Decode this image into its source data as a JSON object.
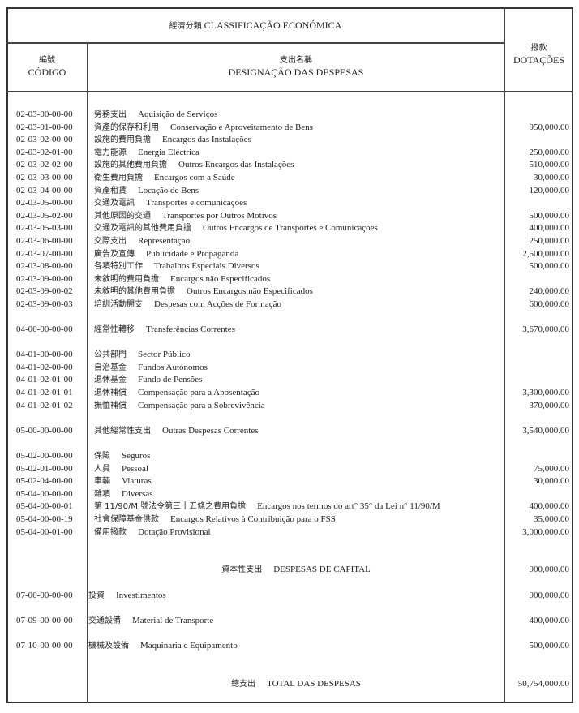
{
  "header": {
    "classification_zh": "經濟分類",
    "classification_pt": "CLASSIFICAÇÃO ECONÓMICA",
    "code_zh": "編號",
    "code_pt": "CÓDIGO",
    "designation_zh": "支出名稱",
    "designation_pt": "DESIGNAÇÃO DAS DESPESAS",
    "dotacoes_zh": "撥款",
    "dotacoes_pt": "DOTAÇÕES"
  },
  "sections": [
    {
      "rows": [
        {
          "code": "02-03-00-00-00",
          "zh": "勞務支出",
          "pt": "Aquisição de Serviços",
          "amount": ""
        },
        {
          "code": "02-03-01-00-00",
          "zh": "資產的保存和利用",
          "pt": "Conservação e Aproveitamento de Bens",
          "amount": "950,000.00"
        },
        {
          "code": "02-03-02-00-00",
          "zh": "設施的費用負擔",
          "pt": "Encargos das Instalações",
          "amount": ""
        },
        {
          "code": "02-03-02-01-00",
          "zh": "電力能源",
          "pt": "Energia Eléctrica",
          "amount": "250,000.00"
        },
        {
          "code": "02-03-02-02-00",
          "zh": "設施的其他費用負擔",
          "pt": "Outros Encargos das Instalações",
          "amount": "510,000.00"
        },
        {
          "code": "02-03-03-00-00",
          "zh": "衛生費用負擔",
          "pt": "Encargos com a Saúde",
          "amount": "30,000.00"
        },
        {
          "code": "02-03-04-00-00",
          "zh": "資產租賃",
          "pt": "Locação de Bens",
          "amount": "120,000.00"
        },
        {
          "code": "02-03-05-00-00",
          "zh": "交通及電訊",
          "pt": "Transportes e comunicações",
          "amount": ""
        },
        {
          "code": "02-03-05-02-00",
          "zh": "其他原因的交通",
          "pt": "Transportes por Outros Motivos",
          "amount": "500,000.00"
        },
        {
          "code": "02-03-05-03-00",
          "zh": "交通及電訊的其他費用負擔",
          "pt": "Outros Encargos de Transportes e Comunicações",
          "amount": "400,000.00"
        },
        {
          "code": "02-03-06-00-00",
          "zh": "交際支出",
          "pt": "Representação",
          "amount": "250,000.00"
        },
        {
          "code": "02-03-07-00-00",
          "zh": "廣告及宣傳",
          "pt": "Publicidade e Propaganda",
          "amount": "2,500,000.00"
        },
        {
          "code": "02-03-08-00-00",
          "zh": "各項特別工作",
          "pt": "Trabalhos Especiais Diversos",
          "amount": "500,000.00"
        },
        {
          "code": "02-03-09-00-00",
          "zh": "未敘明的費用負擔",
          "pt": "Encargos não Especificados",
          "amount": ""
        },
        {
          "code": "02-03-09-00-02",
          "zh": "未敘明的其他費用負擔",
          "pt": "Outros Encargos não Especificados",
          "amount": "240,000.00"
        },
        {
          "code": "02-03-09-00-03",
          "zh": "培訓活動開支",
          "pt": "Despesas com Acções de Formação",
          "amount": "600,000.00"
        }
      ]
    },
    {
      "rows": [
        {
          "code": "04-00-00-00-00",
          "zh": "經常性轉移",
          "pt": "Transferências Correntes",
          "amount": "3,670,000.00"
        }
      ]
    },
    {
      "rows": [
        {
          "code": "04-01-00-00-00",
          "zh": "公共部門",
          "pt": "Sector Público",
          "amount": ""
        },
        {
          "code": "04-01-02-00-00",
          "zh": "自治基金",
          "pt": "Fundos Autónomos",
          "amount": ""
        },
        {
          "code": "04-01-02-01-00",
          "zh": "退休基金",
          "pt": "Fundo de Pensões",
          "amount": ""
        },
        {
          "code": "04-01-02-01-01",
          "zh": "退休補償",
          "pt": "Compensação para a Aposentação",
          "amount": "3,300,000.00"
        },
        {
          "code": "04-01-02-01-02",
          "zh": "撫恤補償",
          "pt": "Compensação para a Sobrevivência",
          "amount": "370,000.00"
        }
      ]
    },
    {
      "rows": [
        {
          "code": "05-00-00-00-00",
          "zh": "其他經常性支出",
          "pt": "Outras Despesas Correntes",
          "amount": "3,540,000.00"
        }
      ]
    },
    {
      "rows": [
        {
          "code": "05-02-00-00-00",
          "zh": "保險",
          "pt": "Seguros",
          "amount": ""
        },
        {
          "code": "05-02-01-00-00",
          "zh": "人員",
          "pt": "Pessoal",
          "amount": "75,000.00"
        },
        {
          "code": "05-02-04-00-00",
          "zh": "車輛",
          "pt": "Viaturas",
          "amount": "30,000.00"
        },
        {
          "code": "05-04-00-00-00",
          "zh": "雜項",
          "pt": "Diversas",
          "amount": ""
        },
        {
          "code": "05-04-00-00-01",
          "zh": "第 11/90/M 號法令第三十五條之費用負擔",
          "pt": "Encargos nos termos do art° 35° da Lei n° 11/90/M",
          "amount": "400,000.00"
        },
        {
          "code": "05-04-00-00-19",
          "zh": "社會保障基金供款",
          "pt": "Encargos Relativos à Contribuição para o FSS",
          "amount": "35,000.00"
        },
        {
          "code": "05-04-00-01-00",
          "zh": "備用撥款",
          "pt": "Dotação Provisional",
          "amount": "3,000,000.00"
        }
      ]
    },
    {
      "heading": true,
      "rows": [
        {
          "code": "",
          "zh": "資本性支出",
          "pt": "DESPESAS DE CAPITAL",
          "amount": "900,000.00"
        }
      ]
    },
    {
      "tight": true,
      "rows": [
        {
          "code": "07-00-00-00-00",
          "zh": "投資",
          "pt": "Investimentos",
          "amount": "900,000.00"
        }
      ]
    },
    {
      "tight": true,
      "rows": [
        {
          "code": "07-09-00-00-00",
          "zh": "交通設備",
          "pt": "Material de Transporte",
          "amount": "400,000.00"
        }
      ]
    },
    {
      "tight": true,
      "rows": [
        {
          "code": "07-10-00-00-00",
          "zh": "機械及設備",
          "pt": "Maquinaria e Equipamento",
          "amount": "500,000.00"
        }
      ]
    },
    {
      "heading": true,
      "rows": [
        {
          "code": "",
          "zh": "總支出",
          "pt": "TOTAL DAS DESPESAS",
          "amount": "50,754,000.00"
        }
      ]
    }
  ]
}
